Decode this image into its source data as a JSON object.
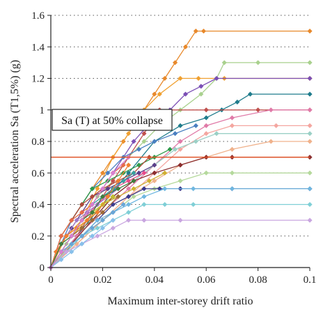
{
  "chart_data": {
    "type": "line",
    "title": "",
    "xlabel": "Maximum inter-storey drift ratio",
    "ylabel": "Spectral acceleration Sa (T1,5%) (g)",
    "xlim": [
      0,
      0.1
    ],
    "ylim": [
      0,
      1.6
    ],
    "xticks": [
      0,
      0.02,
      0.04,
      0.06,
      0.08,
      0.1
    ],
    "xtick_labels": [
      "0",
      "0.02",
      "0.04",
      "0.06",
      "0.08",
      "0.1"
    ],
    "yticks": [
      0,
      0.2,
      0.4,
      0.6,
      0.8,
      1.0,
      1.2,
      1.4,
      1.6
    ],
    "ytick_labels": [
      "0",
      "0.2",
      "0.4",
      "0.6",
      "0.8",
      "1",
      "1.2",
      "1.4",
      "1.6"
    ],
    "grid": "horizontal-dotted",
    "annotation": "Sa (T) at 50% collapse",
    "reference_line": {
      "y": 0.7,
      "color": "#e0542a"
    },
    "series": [
      {
        "color": "#e8892b",
        "x": [
          0,
          0.004,
          0.008,
          0.012,
          0.016,
          0.02,
          0.024,
          0.028,
          0.032,
          0.036,
          0.04,
          0.044,
          0.048,
          0.052,
          0.056,
          0.059,
          0.1
        ],
        "y": [
          0,
          0.2,
          0.3,
          0.4,
          0.5,
          0.6,
          0.7,
          0.8,
          0.9,
          1.0,
          1.1,
          1.2,
          1.3,
          1.4,
          1.5,
          1.5,
          1.5
        ]
      },
      {
        "color": "#f0a030",
        "x": [
          0,
          0.006,
          0.012,
          0.018,
          0.024,
          0.03,
          0.036,
          0.042,
          0.05,
          0.057,
          0.067,
          0.1
        ],
        "y": [
          0,
          0.2,
          0.3,
          0.5,
          0.7,
          0.85,
          1.0,
          1.1,
          1.2,
          1.2,
          1.2,
          1.2
        ]
      },
      {
        "color": "#a9d18e",
        "x": [
          0,
          0.006,
          0.012,
          0.018,
          0.024,
          0.03,
          0.036,
          0.042,
          0.05,
          0.058,
          0.064,
          0.067,
          0.08,
          0.1
        ],
        "y": [
          0,
          0.15,
          0.3,
          0.45,
          0.55,
          0.7,
          0.8,
          0.9,
          1.0,
          1.1,
          1.2,
          1.3,
          1.3,
          1.3
        ]
      },
      {
        "color": "#7b4fb5",
        "x": [
          0,
          0.008,
          0.016,
          0.024,
          0.032,
          0.04,
          0.046,
          0.052,
          0.058,
          0.064,
          0.1
        ],
        "y": [
          0,
          0.2,
          0.4,
          0.6,
          0.8,
          0.95,
          1.0,
          1.1,
          1.15,
          1.2,
          1.2
        ]
      },
      {
        "color": "#1f7c8c",
        "x": [
          0,
          0.01,
          0.02,
          0.03,
          0.04,
          0.05,
          0.06,
          0.066,
          0.072,
          0.077,
          0.1
        ],
        "y": [
          0,
          0.2,
          0.4,
          0.6,
          0.8,
          0.9,
          0.95,
          1.0,
          1.05,
          1.1,
          1.1
        ]
      },
      {
        "color": "#c0504d",
        "x": [
          0,
          0.006,
          0.012,
          0.018,
          0.024,
          0.03,
          0.036,
          0.042,
          0.06,
          0.08,
          0.1
        ],
        "y": [
          0,
          0.1,
          0.25,
          0.4,
          0.55,
          0.7,
          0.85,
          1.0,
          1.0,
          1.0,
          1.0
        ]
      },
      {
        "color": "#e07aa8",
        "x": [
          0,
          0.01,
          0.02,
          0.03,
          0.04,
          0.05,
          0.06,
          0.07,
          0.085,
          0.1
        ],
        "y": [
          0,
          0.2,
          0.35,
          0.5,
          0.65,
          0.8,
          0.9,
          0.95,
          1.0,
          1.0
        ]
      },
      {
        "color": "#f4a6a0",
        "x": [
          0,
          0.01,
          0.02,
          0.03,
          0.04,
          0.05,
          0.06,
          0.07,
          0.087,
          0.1
        ],
        "y": [
          0,
          0.15,
          0.3,
          0.45,
          0.6,
          0.75,
          0.85,
          0.9,
          0.9,
          0.9
        ]
      },
      {
        "color": "#f0b28c",
        "x": [
          0,
          0.01,
          0.02,
          0.03,
          0.04,
          0.05,
          0.06,
          0.07,
          0.085,
          0.1
        ],
        "y": [
          0,
          0.15,
          0.3,
          0.45,
          0.55,
          0.65,
          0.7,
          0.75,
          0.8,
          0.8
        ]
      },
      {
        "color": "#9bd0c6",
        "x": [
          0,
          0.008,
          0.016,
          0.024,
          0.032,
          0.04,
          0.048,
          0.056,
          0.064,
          0.1
        ],
        "y": [
          0,
          0.15,
          0.3,
          0.45,
          0.55,
          0.65,
          0.75,
          0.8,
          0.85,
          0.85
        ]
      },
      {
        "color": "#8b2e2e",
        "x": [
          0,
          0.008,
          0.016,
          0.024,
          0.032,
          0.04,
          0.05,
          0.06,
          0.07,
          0.1
        ],
        "y": [
          0,
          0.15,
          0.3,
          0.45,
          0.55,
          0.6,
          0.65,
          0.7,
          0.7,
          0.7
        ]
      },
      {
        "color": "#b5d99c",
        "x": [
          0,
          0.008,
          0.016,
          0.024,
          0.032,
          0.04,
          0.05,
          0.06,
          0.07,
          0.1
        ],
        "y": [
          0,
          0.15,
          0.25,
          0.35,
          0.45,
          0.5,
          0.55,
          0.6,
          0.6,
          0.6
        ]
      },
      {
        "color": "#3a3a8c",
        "x": [
          0,
          0.006,
          0.012,
          0.018,
          0.024,
          0.03,
          0.036,
          0.042,
          0.05,
          0.07,
          0.1
        ],
        "y": [
          0,
          0.1,
          0.2,
          0.3,
          0.4,
          0.45,
          0.5,
          0.5,
          0.5,
          0.5,
          0.5
        ]
      },
      {
        "color": "#6fb7e0",
        "x": [
          0,
          0.006,
          0.012,
          0.018,
          0.024,
          0.03,
          0.036,
          0.044,
          0.055,
          0.07,
          0.1
        ],
        "y": [
          0,
          0.1,
          0.2,
          0.3,
          0.35,
          0.4,
          0.45,
          0.5,
          0.5,
          0.5,
          0.5
        ]
      },
      {
        "color": "#7fcfd6",
        "x": [
          0,
          0.006,
          0.012,
          0.018,
          0.024,
          0.03,
          0.036,
          0.044,
          0.055,
          0.1
        ],
        "y": [
          0,
          0.1,
          0.2,
          0.25,
          0.3,
          0.35,
          0.4,
          0.4,
          0.4,
          0.4
        ]
      },
      {
        "color": "#c9a6e0",
        "x": [
          0,
          0.006,
          0.012,
          0.018,
          0.024,
          0.03,
          0.036,
          0.05,
          0.1
        ],
        "y": [
          0,
          0.1,
          0.15,
          0.2,
          0.25,
          0.3,
          0.3,
          0.3,
          0.3
        ]
      },
      {
        "color": "#4a7fc1",
        "x": [
          0,
          0.004,
          0.008,
          0.012,
          0.016,
          0.022,
          0.028,
          0.034,
          0.04,
          0.048,
          0.056
        ],
        "y": [
          0,
          0.15,
          0.3,
          0.4,
          0.5,
          0.6,
          0.7,
          0.75,
          0.8,
          0.85,
          0.9
        ]
      },
      {
        "color": "#2e9b4a",
        "x": [
          0,
          0.004,
          0.008,
          0.012,
          0.016,
          0.022,
          0.028,
          0.034,
          0.04,
          0.046
        ],
        "y": [
          0,
          0.2,
          0.3,
          0.4,
          0.5,
          0.55,
          0.6,
          0.65,
          0.7,
          0.75
        ]
      },
      {
        "color": "#d0b030",
        "x": [
          0,
          0.004,
          0.008,
          0.014,
          0.02,
          0.026,
          0.032,
          0.038,
          0.044
        ],
        "y": [
          0,
          0.1,
          0.2,
          0.3,
          0.4,
          0.45,
          0.5,
          0.55,
          0.6
        ]
      },
      {
        "color": "#e94b8a",
        "x": [
          0,
          0.004,
          0.008,
          0.012,
          0.018,
          0.024,
          0.03,
          0.036
        ],
        "y": [
          0,
          0.1,
          0.2,
          0.3,
          0.4,
          0.5,
          0.55,
          0.6
        ]
      },
      {
        "color": "#5b3f8a",
        "x": [
          0,
          0.004,
          0.008,
          0.012,
          0.016,
          0.022,
          0.028,
          0.034,
          0.04
        ],
        "y": [
          0,
          0.15,
          0.25,
          0.35,
          0.45,
          0.5,
          0.55,
          0.6,
          0.65
        ]
      },
      {
        "color": "#b04a3a",
        "x": [
          0,
          0.004,
          0.008,
          0.012,
          0.016,
          0.02,
          0.026,
          0.032,
          0.038
        ],
        "y": [
          0,
          0.2,
          0.3,
          0.4,
          0.45,
          0.5,
          0.55,
          0.6,
          0.7
        ]
      },
      {
        "color": "#9e6b3a",
        "x": [
          0,
          0.004,
          0.008,
          0.012,
          0.016,
          0.02,
          0.026
        ],
        "y": [
          0,
          0.1,
          0.2,
          0.25,
          0.3,
          0.35,
          0.45
        ]
      },
      {
        "color": "#68a5d6",
        "x": [
          0,
          0.004,
          0.008,
          0.012,
          0.016,
          0.02,
          0.024,
          0.028
        ],
        "y": [
          0,
          0.1,
          0.15,
          0.2,
          0.25,
          0.3,
          0.35,
          0.4
        ]
      },
      {
        "color": "#c0c030",
        "x": [
          0,
          0.004,
          0.008,
          0.012,
          0.016,
          0.02,
          0.024
        ],
        "y": [
          0,
          0.1,
          0.2,
          0.3,
          0.35,
          0.4,
          0.45
        ]
      },
      {
        "color": "#e66c4a",
        "x": [
          0,
          0.004,
          0.008,
          0.012,
          0.016,
          0.02,
          0.024,
          0.028
        ],
        "y": [
          0,
          0.2,
          0.3,
          0.35,
          0.4,
          0.5,
          0.6,
          0.65
        ]
      },
      {
        "color": "#39a0a0",
        "x": [
          0,
          0.004,
          0.008,
          0.012,
          0.016,
          0.02,
          0.024,
          0.028,
          0.032
        ],
        "y": [
          0,
          0.1,
          0.2,
          0.3,
          0.4,
          0.45,
          0.5,
          0.55,
          0.6
        ]
      },
      {
        "color": "#a07ac8",
        "x": [
          0,
          0.002,
          0.006,
          0.01,
          0.014,
          0.018,
          0.022,
          0.026
        ],
        "y": [
          0,
          0.1,
          0.2,
          0.3,
          0.35,
          0.4,
          0.45,
          0.5
        ]
      },
      {
        "color": "#f08030",
        "x": [
          0,
          0.002,
          0.006,
          0.01,
          0.014,
          0.018,
          0.022,
          0.026,
          0.03
        ],
        "y": [
          0,
          0.1,
          0.2,
          0.25,
          0.3,
          0.35,
          0.45,
          0.55,
          0.65
        ]
      },
      {
        "color": "#3f7f3f",
        "x": [
          0,
          0.004,
          0.008,
          0.012,
          0.016,
          0.02,
          0.026,
          0.032
        ],
        "y": [
          0,
          0.15,
          0.2,
          0.3,
          0.35,
          0.45,
          0.5,
          0.55
        ]
      },
      {
        "color": "#88c0ea",
        "x": [
          0,
          0.004,
          0.008,
          0.012,
          0.016,
          0.02,
          0.024
        ],
        "y": [
          0,
          0.05,
          0.1,
          0.15,
          0.2,
          0.25,
          0.3
        ]
      },
      {
        "color": "#d87fd0",
        "x": [
          0,
          0.004,
          0.008,
          0.012,
          0.016,
          0.02,
          0.024,
          0.03
        ],
        "y": [
          0,
          0.1,
          0.2,
          0.3,
          0.4,
          0.5,
          0.6,
          0.7
        ]
      }
    ]
  }
}
